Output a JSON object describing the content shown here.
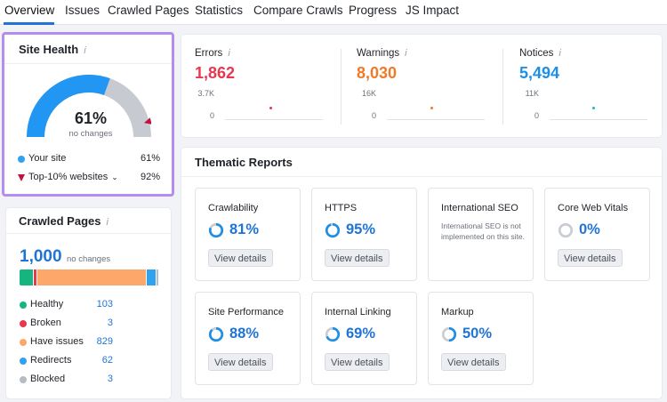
{
  "tabs": [
    {
      "label": "Overview",
      "active": true
    },
    {
      "label": "Issues"
    },
    {
      "label": "Crawled Pages"
    },
    {
      "label": "Statistics"
    },
    {
      "label": "Compare Crawls"
    },
    {
      "label": "Progress"
    },
    {
      "label": "JS Impact"
    }
  ],
  "site_health": {
    "title": "Site Health",
    "info_icon": "info-icon",
    "score_percent": "61%",
    "score_fraction": 0.61,
    "benchmark_fraction": 0.92,
    "change_text": "no changes",
    "gauge_colors": {
      "filled": "#2196f3",
      "remaining": "#c7cbd1",
      "marker": "#c0143c"
    },
    "legend": [
      {
        "label": "Your site",
        "value": "61%",
        "color": "#2fa3f0"
      },
      {
        "label": "Top-10% websites",
        "value": "92%",
        "color": "#c0143c"
      }
    ]
  },
  "crawled_pages": {
    "title": "Crawled Pages",
    "total": "1,000",
    "change_text": "no changes",
    "rows": [
      {
        "label": "Healthy",
        "value": "103",
        "count": 103,
        "color": "#16b57f"
      },
      {
        "label": "Broken",
        "value": "3",
        "count": 3,
        "color": "#e8384f"
      },
      {
        "label": "Have issues",
        "value": "829",
        "count": 829,
        "color": "#fda86a"
      },
      {
        "label": "Redirects",
        "value": "62",
        "count": 62,
        "color": "#2fa3f0"
      },
      {
        "label": "Blocked",
        "value": "3",
        "count": 3,
        "color": "#b6bcc4"
      }
    ]
  },
  "metrics": [
    {
      "label": "Errors",
      "value": "1,862",
      "color": "#e8384f",
      "max": "3.7K",
      "min": "0",
      "dot_color": "#e8384f"
    },
    {
      "label": "Warnings",
      "value": "8,030",
      "color": "#f07a27",
      "max": "16K",
      "min": "0",
      "dot_color": "#f07a27"
    },
    {
      "label": "Notices",
      "value": "5,494",
      "color": "#1f8fe6",
      "max": "11K",
      "min": "0",
      "dot_color": "#1bb5c9"
    }
  ],
  "thematic": {
    "title": "Thematic Reports",
    "button_label": "View details",
    "ring_color": "#1f8fe6",
    "ring_track": "#c8cdd3",
    "tiles": [
      {
        "name": "Crawlability",
        "pct": "81%",
        "fraction": 0.81
      },
      {
        "name": "HTTPS",
        "pct": "95%",
        "fraction": 0.95
      },
      {
        "name": "International SEO",
        "note": "International SEO is not implemented on this site."
      },
      {
        "name": "Core Web Vitals",
        "pct": "0%",
        "fraction": 0
      },
      {
        "name": "Site Performance",
        "pct": "88%",
        "fraction": 0.88
      },
      {
        "name": "Internal Linking",
        "pct": "69%",
        "fraction": 0.69
      },
      {
        "name": "Markup",
        "pct": "50%",
        "fraction": 0.5
      }
    ]
  }
}
